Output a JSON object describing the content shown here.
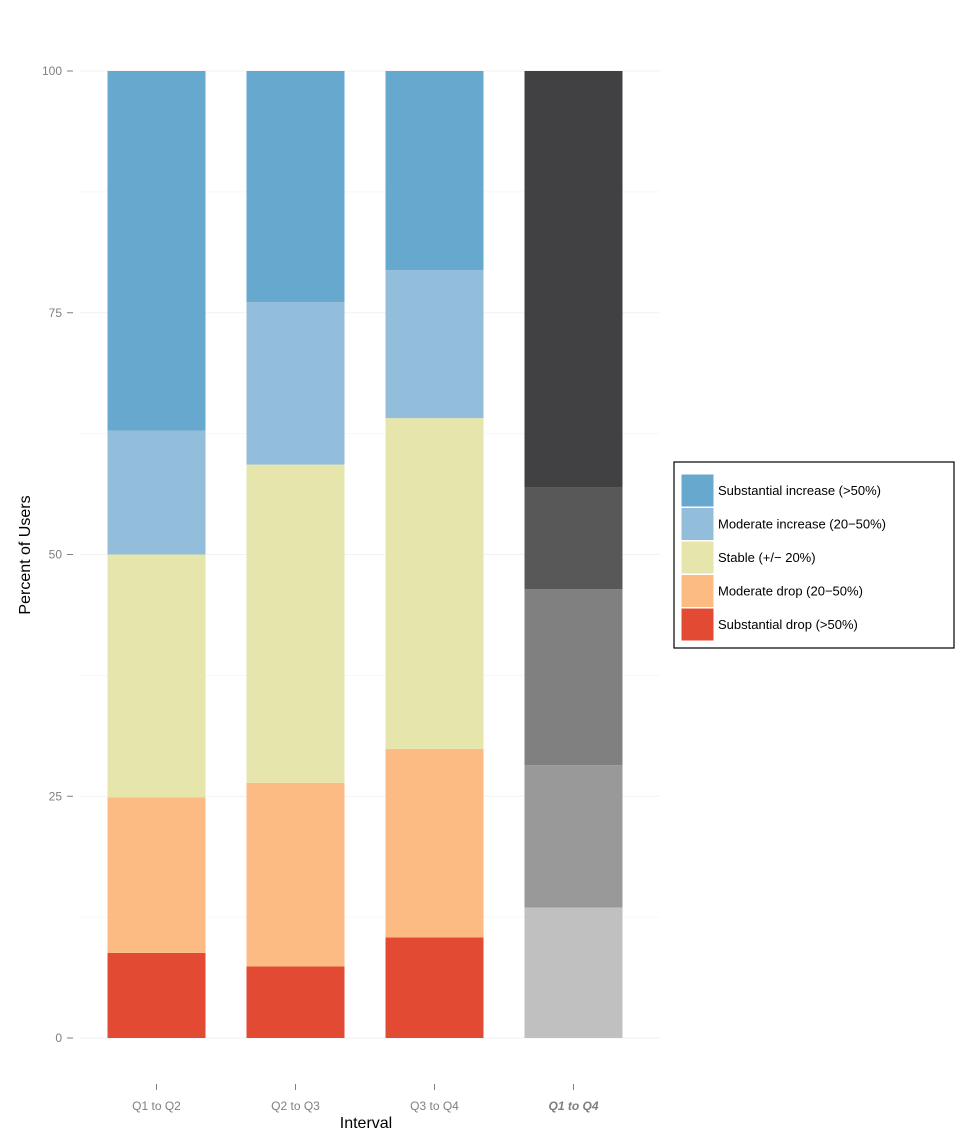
{
  "chart_data": {
    "type": "bar",
    "stacked": true,
    "xlabel": "Interval",
    "ylabel": "Percent of Users",
    "ylim": [
      0,
      100
    ],
    "yticks": [
      0,
      25,
      50,
      75,
      100
    ],
    "grid": true,
    "legend_position": "right",
    "categories": [
      "Q1 to Q2",
      "Q2 to Q3",
      "Q3 to Q4",
      "Q1 to Q4"
    ],
    "emphasized_category": "Q1 to Q4",
    "series": [
      {
        "name": "Substantial drop (>50%)",
        "color": "#e34a33",
        "values": [
          8.8,
          7.4,
          10.4,
          13.5
        ],
        "grayscale_color": "#c0c0c0"
      },
      {
        "name": "Moderate drop (20−50%)",
        "color": "#fdbb84",
        "values": [
          16.1,
          19.0,
          19.5,
          14.7
        ],
        "grayscale_color": "#999999"
      },
      {
        "name": "Stable (+/− 20%)",
        "color": "#e6e6ac",
        "values": [
          25.1,
          32.9,
          34.2,
          18.2
        ],
        "grayscale_color": "#808080"
      },
      {
        "name": "Moderate increase (20−50%)",
        "color": "#92bddb",
        "values": [
          12.8,
          16.8,
          15.3,
          10.5
        ],
        "grayscale_color": "#585858"
      },
      {
        "name": "Substantial increase (>50%)",
        "color": "#66a8ce",
        "values": [
          37.2,
          23.9,
          20.6,
          43.1
        ],
        "grayscale_color": "#414042"
      }
    ]
  }
}
